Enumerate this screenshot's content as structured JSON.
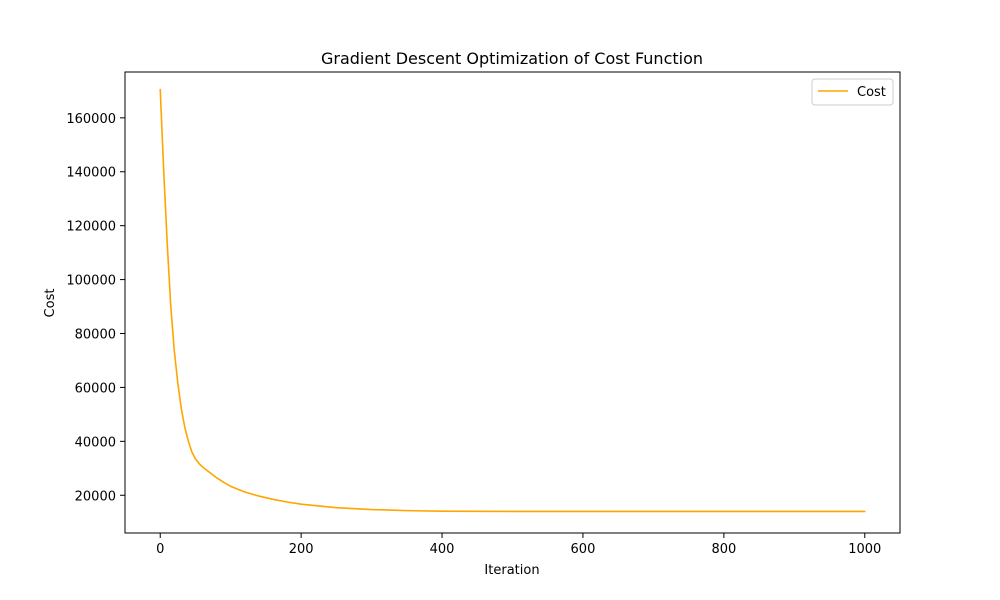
{
  "chart_data": {
    "type": "line",
    "title": "Gradient Descent Optimization of Cost Function",
    "xlabel": "Iteration",
    "ylabel": "Cost",
    "xlim": [
      -50,
      1050
    ],
    "ylim": [
      6000,
      177000
    ],
    "xticks": [
      0,
      200,
      400,
      600,
      800,
      1000
    ],
    "yticks": [
      20000,
      40000,
      60000,
      80000,
      100000,
      120000,
      140000,
      160000
    ],
    "grid": false,
    "legend": {
      "position": "top-right"
    },
    "series": [
      {
        "name": "Cost",
        "color": "#FFA500",
        "x": [
          0,
          5,
          10,
          15,
          20,
          25,
          30,
          35,
          40,
          45,
          50,
          56,
          60,
          70,
          80,
          90,
          100,
          120,
          140,
          160,
          180,
          200,
          250,
          300,
          350,
          400,
          500,
          600,
          700,
          800,
          900,
          1000
        ],
        "y": [
          170500,
          140000,
          113000,
          90000,
          73500,
          61500,
          52000,
          45000,
          40000,
          36000,
          33500,
          31500,
          30500,
          28500,
          26500,
          24800,
          23300,
          21200,
          19700,
          18500,
          17500,
          16700,
          15400,
          14700,
          14300,
          14100,
          14000,
          14000,
          14000,
          14000,
          14000,
          14000
        ]
      }
    ]
  }
}
